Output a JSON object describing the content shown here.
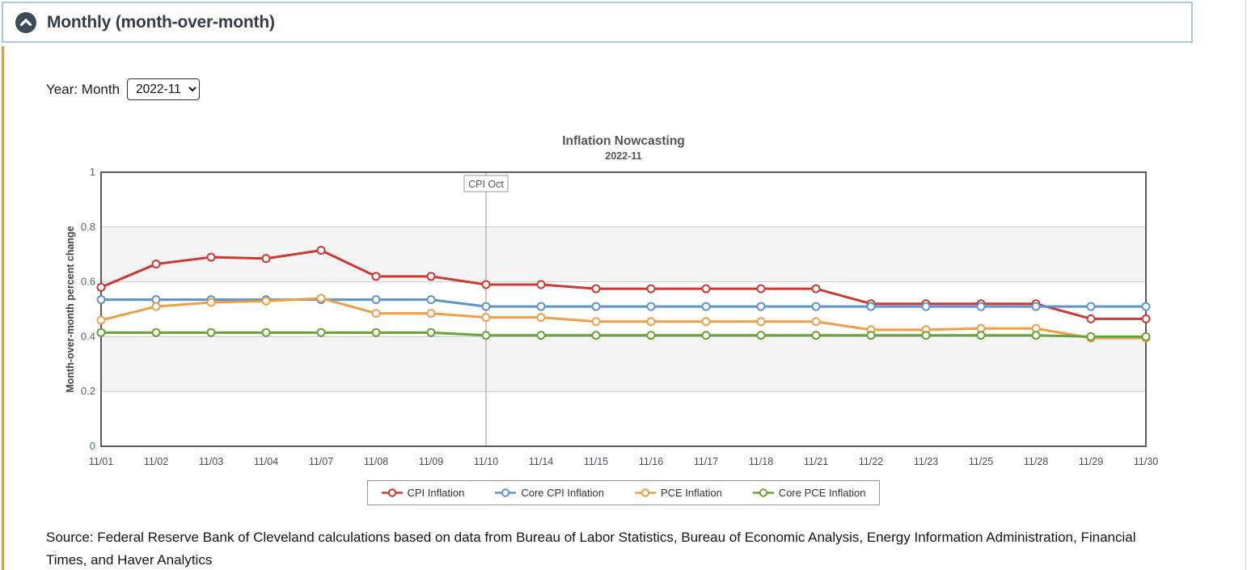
{
  "header": {
    "title": "Monthly (month-over-month)"
  },
  "controls": {
    "label": "Year: Month",
    "selected_option": "2022-11",
    "options": [
      "2022-11"
    ]
  },
  "chart_data": {
    "type": "line",
    "title": "Inflation Nowcasting",
    "subtitle": "2022-11",
    "xlabel": "",
    "ylabel": "Month-over-month percent change",
    "ylim": [
      0,
      1
    ],
    "yticks": [
      {
        "value": 0,
        "label": "0"
      },
      {
        "value": 0.2,
        "label": "0.2"
      },
      {
        "value": 0.4,
        "label": "0.4"
      },
      {
        "value": 0.6,
        "label": "0.6"
      },
      {
        "value": 0.8,
        "label": "0.8"
      },
      {
        "value": 1,
        "label": "1"
      }
    ],
    "bands": [
      [
        0.2,
        0.4
      ],
      [
        0.6,
        0.8
      ]
    ],
    "grid": "horizontal",
    "legend_position": "bottom",
    "categories": [
      "11/01",
      "11/02",
      "11/03",
      "11/04",
      "11/07",
      "11/08",
      "11/09",
      "11/10",
      "11/14",
      "11/15",
      "11/16",
      "11/17",
      "11/18",
      "11/21",
      "11/22",
      "11/23",
      "11/25",
      "11/28",
      "11/29",
      "11/30"
    ],
    "annotation": {
      "label": "CPI Oct",
      "x": "11/10"
    },
    "series": [
      {
        "name": "CPI Inflation",
        "color": "#cc3832",
        "values": [
          0.58,
          0.665,
          0.69,
          0.685,
          0.715,
          0.62,
          0.62,
          0.59,
          0.59,
          0.575,
          0.575,
          0.575,
          0.575,
          0.575,
          0.52,
          0.52,
          0.52,
          0.52,
          0.465,
          0.465
        ]
      },
      {
        "name": "Core CPI Inflation",
        "color": "#5b93cc",
        "values": [
          0.535,
          0.535,
          0.535,
          0.535,
          0.535,
          0.535,
          0.535,
          0.51,
          0.51,
          0.51,
          0.51,
          0.51,
          0.51,
          0.51,
          0.51,
          0.51,
          0.51,
          0.51,
          0.51,
          0.51
        ]
      },
      {
        "name": "PCE Inflation",
        "color": "#ec9f49",
        "values": [
          0.46,
          0.51,
          0.525,
          0.53,
          0.54,
          0.485,
          0.485,
          0.47,
          0.47,
          0.455,
          0.455,
          0.455,
          0.455,
          0.455,
          0.425,
          0.425,
          0.43,
          0.43,
          0.395,
          0.395
        ]
      },
      {
        "name": "Core PCE Inflation",
        "color": "#67a335",
        "values": [
          0.415,
          0.415,
          0.415,
          0.415,
          0.415,
          0.415,
          0.415,
          0.405,
          0.405,
          0.405,
          0.405,
          0.405,
          0.405,
          0.405,
          0.405,
          0.405,
          0.405,
          0.405,
          0.4,
          0.4
        ]
      }
    ]
  },
  "source": {
    "text": "Source: Federal Reserve Bank of Cleveland calculations based on data from Bureau of Labor Statistics, Bureau of Economic Analysis, Energy Information Administration, Financial Times, and Haver Analytics"
  },
  "colors": {
    "accent_border": "#d79b55",
    "header_border": "#a9c6e8",
    "header_icon_bg": "#3d4a57",
    "plot_band": "#f4f4f4",
    "plot_border": "#5a5a5a",
    "gridline": "#cccccc",
    "annotation_line": "#999999"
  }
}
